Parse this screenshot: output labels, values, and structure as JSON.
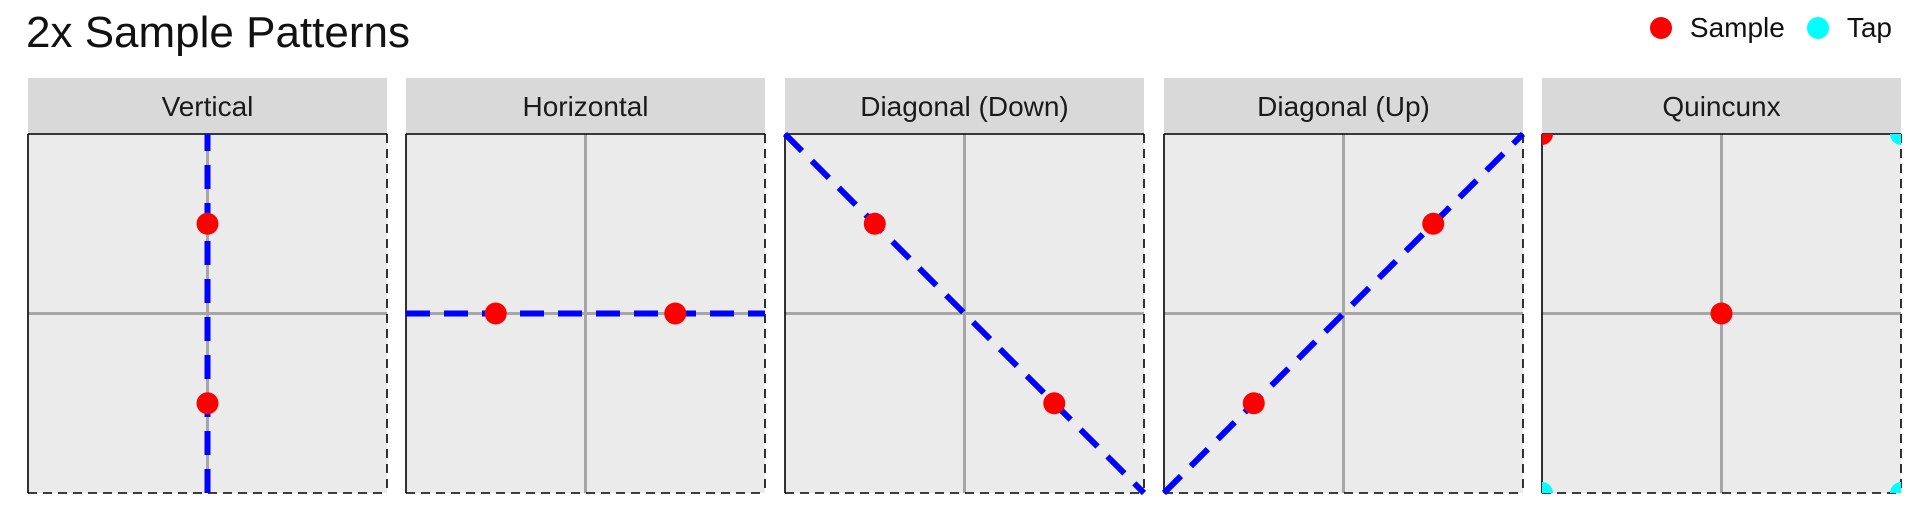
{
  "title": "2x Sample Patterns",
  "legend": [
    {
      "label": "Sample",
      "color": "#ff0000"
    },
    {
      "label": "Tap",
      "color": "#00ffff"
    }
  ],
  "colors": {
    "panel_background": "#ebebeb",
    "strip_background": "#d9d9d9",
    "grid": "#a6a6a6",
    "guide_line": "#0000ff",
    "border": "#000000"
  },
  "chart_data": [
    {
      "type": "scatter",
      "facet": "Vertical",
      "xlim": [
        -1,
        1
      ],
      "ylim": [
        -1,
        1
      ],
      "samples": [
        {
          "x": 0,
          "y": 0.5
        },
        {
          "x": 0,
          "y": -0.5
        }
      ],
      "taps": [],
      "guide": {
        "x1": 0,
        "y1": -1,
        "x2": 0,
        "y2": 1
      }
    },
    {
      "type": "scatter",
      "facet": "Horizontal",
      "xlim": [
        -1,
        1
      ],
      "ylim": [
        -1,
        1
      ],
      "samples": [
        {
          "x": -0.5,
          "y": 0
        },
        {
          "x": 0.5,
          "y": 0
        }
      ],
      "taps": [],
      "guide": {
        "x1": -1,
        "y1": 0,
        "x2": 1,
        "y2": 0
      }
    },
    {
      "type": "scatter",
      "facet": "Diagonal (Down)",
      "xlim": [
        -1,
        1
      ],
      "ylim": [
        -1,
        1
      ],
      "samples": [
        {
          "x": -0.5,
          "y": 0.5
        },
        {
          "x": 0.5,
          "y": -0.5
        }
      ],
      "taps": [],
      "guide": {
        "x1": -1,
        "y1": 1,
        "x2": 1,
        "y2": -1
      }
    },
    {
      "type": "scatter",
      "facet": "Diagonal (Up)",
      "xlim": [
        -1,
        1
      ],
      "ylim": [
        -1,
        1
      ],
      "samples": [
        {
          "x": -0.5,
          "y": -0.5
        },
        {
          "x": 0.5,
          "y": 0.5
        }
      ],
      "taps": [],
      "guide": {
        "x1": -1,
        "y1": -1,
        "x2": 1,
        "y2": 1
      }
    },
    {
      "type": "scatter",
      "facet": "Quincunx",
      "xlim": [
        -1,
        1
      ],
      "ylim": [
        -1,
        1
      ],
      "samples": [
        {
          "x": 0,
          "y": 0
        },
        {
          "x": -1,
          "y": 1
        }
      ],
      "taps": [
        {
          "x": 1,
          "y": 1
        },
        {
          "x": -1,
          "y": -1
        },
        {
          "x": 1,
          "y": -1
        }
      ],
      "guide": null
    }
  ]
}
